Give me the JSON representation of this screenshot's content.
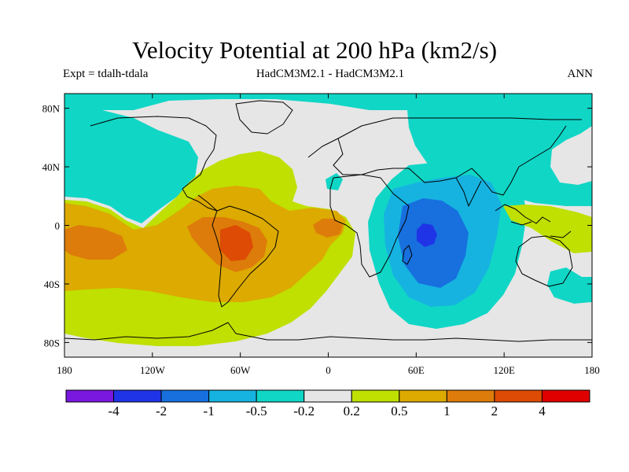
{
  "title": "Velocity Potential at 200 hPa (km2/s)",
  "subtitle_left": "Expt = tdalh-tdala",
  "subtitle_center": "HadCM3M2.1 - HadCM3M2.1",
  "subtitle_right": "ANN",
  "map": {
    "projection": "cylindrical equidistant",
    "lon_range": [
      180,
      540
    ],
    "lat_range": [
      -90,
      90
    ],
    "lat_ticks": [
      {
        "value": 80,
        "label": "80N"
      },
      {
        "value": 40,
        "label": "40N"
      },
      {
        "value": 0,
        "label": "0"
      },
      {
        "value": -40,
        "label": "40S"
      },
      {
        "value": -80,
        "label": "80S"
      }
    ],
    "lon_ticks": [
      {
        "value": 180,
        "label": "180"
      },
      {
        "value": 240,
        "label": "120W"
      },
      {
        "value": 300,
        "label": "60W"
      },
      {
        "value": 360,
        "label": "0"
      },
      {
        "value": 420,
        "label": "60E"
      },
      {
        "value": 480,
        "label": "120E"
      },
      {
        "value": 540,
        "label": "180"
      }
    ]
  },
  "colorbar": {
    "colors": [
      "#7a18e0",
      "#1f34e6",
      "#1770de",
      "#16b3e0",
      "#10d6c6",
      "#e6e6e6",
      "#bfe000",
      "#dcaa00",
      "#dd7c0a",
      "#dd4b05",
      "#e00000"
    ],
    "labels": [
      "-4",
      "-2",
      "-1",
      "-0.5",
      "-0.2",
      "0.2",
      "0.5",
      "1",
      "2",
      "4"
    ]
  },
  "chart_data": {
    "type": "heatmap",
    "title": "Velocity Potential at 200 hPa (km2/s)",
    "levels": [
      -4,
      -2,
      -1,
      -0.5,
      -0.2,
      0.2,
      0.5,
      1,
      2,
      4
    ],
    "features": [
      {
        "region": "Western Indian Ocean (~65E, 5S)",
        "min_value_range": "< -2"
      },
      {
        "region": "Indian Ocean / East Africa",
        "value_range": "-1 to -0.5"
      },
      {
        "region": "Eurasia / North Pacific north of 40N",
        "value_range": "-0.5 to -0.2"
      },
      {
        "region": "South America (~55W, 10S)",
        "max_value_range": "1 to 2"
      },
      {
        "region": "Central Pacific (~165W, 10S)",
        "max_value_range": "1 to 2"
      },
      {
        "region": "Gulf of Guinea (~5W, 0)",
        "max_value_range": "1 to 2"
      },
      {
        "region": "Southern Hemisphere Pacific/Atlantic",
        "value_range": "0.2 to 0.5"
      }
    ]
  }
}
